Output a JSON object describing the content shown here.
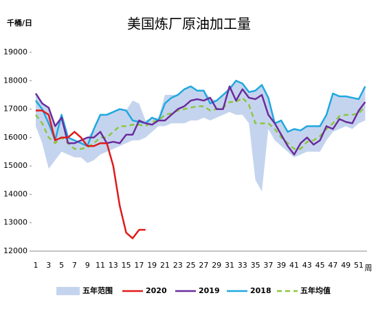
{
  "chart_data": {
    "type": "line",
    "title": "美国炼厂原油加工量",
    "y_unit": "千桶/日",
    "x_unit": "周",
    "categories": [
      "1",
      null,
      "3",
      null,
      "5",
      null,
      "7",
      null,
      "9",
      null,
      "11",
      null,
      "13",
      null,
      "15",
      null,
      "17",
      null,
      "19",
      null,
      "21",
      null,
      "23",
      null,
      "25",
      null,
      "27",
      null,
      "29",
      null,
      "31",
      null,
      "33",
      null,
      "35",
      null,
      "37",
      null,
      "39",
      null,
      "41",
      null,
      "43",
      null,
      "45",
      null,
      "47",
      null,
      "49",
      null,
      "51",
      null
    ],
    "ylim": [
      12000,
      19000
    ],
    "yticks": [
      12000,
      13000,
      14000,
      15000,
      16000,
      17000,
      18000,
      19000
    ],
    "grid": false,
    "band": {
      "name": "五年范围",
      "color": "#c5d4ee",
      "low": [
        16400,
        15800,
        14900,
        15200,
        15500,
        15400,
        15300,
        15300,
        15100,
        15200,
        15400,
        15500,
        15600,
        15700,
        15800,
        15900,
        15900,
        16000,
        16200,
        16400,
        16400,
        16500,
        16500,
        16500,
        16600,
        16600,
        16700,
        16600,
        16700,
        16800,
        16900,
        16800,
        16800,
        16500,
        14500,
        14100,
        16300,
        15900,
        15700,
        15500,
        15300,
        15400,
        15500,
        15500,
        15500,
        15900,
        16200,
        16300,
        16400,
        16300,
        16500,
        16600
      ],
      "high": [
        17550,
        17200,
        17050,
        16400,
        16800,
        16000,
        15900,
        15900,
        16000,
        16300,
        16800,
        16800,
        16900,
        17000,
        16950,
        17300,
        17200,
        16600,
        16700,
        16700,
        17500,
        17500,
        17500,
        17700,
        17800,
        17650,
        17650,
        17400,
        17300,
        17500,
        17800,
        18000,
        17900,
        17600,
        17650,
        17850,
        17400,
        16500,
        16600,
        16200,
        16300,
        16250,
        16400,
        16400,
        16400,
        16800,
        17550,
        17450,
        17450,
        17400,
        17350,
        17800
      ]
    },
    "series": [
      {
        "name": "2020",
        "color": "#e01919",
        "dashed": false,
        "values": [
          16950,
          16950,
          16800,
          15900,
          16000,
          16000,
          16200,
          16000,
          15700,
          15700,
          15800,
          15800,
          15000,
          13600,
          12650,
          12450,
          12750,
          12750,
          null,
          null,
          null,
          null,
          null,
          null,
          null,
          null,
          null,
          null,
          null,
          null,
          null,
          null,
          null,
          null,
          null,
          null,
          null,
          null,
          null,
          null,
          null,
          null,
          null,
          null,
          null,
          null,
          null,
          null,
          null,
          null,
          null,
          null
        ]
      },
      {
        "name": "2019",
        "color": "#6a2c9c",
        "dashed": false,
        "values": [
          17550,
          17200,
          17050,
          16400,
          16700,
          15800,
          15800,
          15900,
          16000,
          16000,
          16200,
          15800,
          15850,
          15800,
          16100,
          16100,
          16600,
          16500,
          16450,
          16600,
          16600,
          16800,
          17000,
          17100,
          17300,
          17350,
          17300,
          17400,
          17000,
          17000,
          17800,
          17300,
          17700,
          17400,
          17350,
          17500,
          16800,
          16500,
          16100,
          15700,
          15400,
          15800,
          16000,
          15750,
          15900,
          16400,
          16300,
          16650,
          16550,
          16500,
          16950,
          17250
        ]
      },
      {
        "name": "2018",
        "color": "#1ea8e0",
        "dashed": false,
        "values": [
          17300,
          17000,
          16500,
          15900,
          16800,
          16000,
          15900,
          15800,
          15700,
          16300,
          16800,
          16800,
          16900,
          17000,
          16950,
          16600,
          16550,
          16500,
          16700,
          16600,
          17200,
          17400,
          17500,
          17700,
          17800,
          17650,
          17650,
          17200,
          17300,
          17500,
          17700,
          18000,
          17900,
          17600,
          17650,
          17850,
          17400,
          16500,
          16600,
          16200,
          16300,
          16250,
          16400,
          16400,
          16400,
          16800,
          17550,
          17450,
          17450,
          17400,
          17350,
          17800
        ]
      },
      {
        "name": "五年均值",
        "color": "#8cc63f",
        "dashed": true,
        "values": [
          16800,
          16500,
          16000,
          15800,
          16000,
          15800,
          15600,
          15600,
          15650,
          15800,
          16000,
          16000,
          16200,
          16400,
          16400,
          16450,
          16450,
          16400,
          16550,
          16600,
          16800,
          16850,
          16950,
          17000,
          17050,
          17100,
          17100,
          16950,
          17000,
          17050,
          17250,
          17250,
          17400,
          17150,
          16500,
          16500,
          16500,
          16300,
          16000,
          15800,
          15600,
          15600,
          15850,
          15900,
          16050,
          16300,
          16500,
          16750,
          16800,
          16800,
          16850,
          17100
        ]
      }
    ]
  }
}
